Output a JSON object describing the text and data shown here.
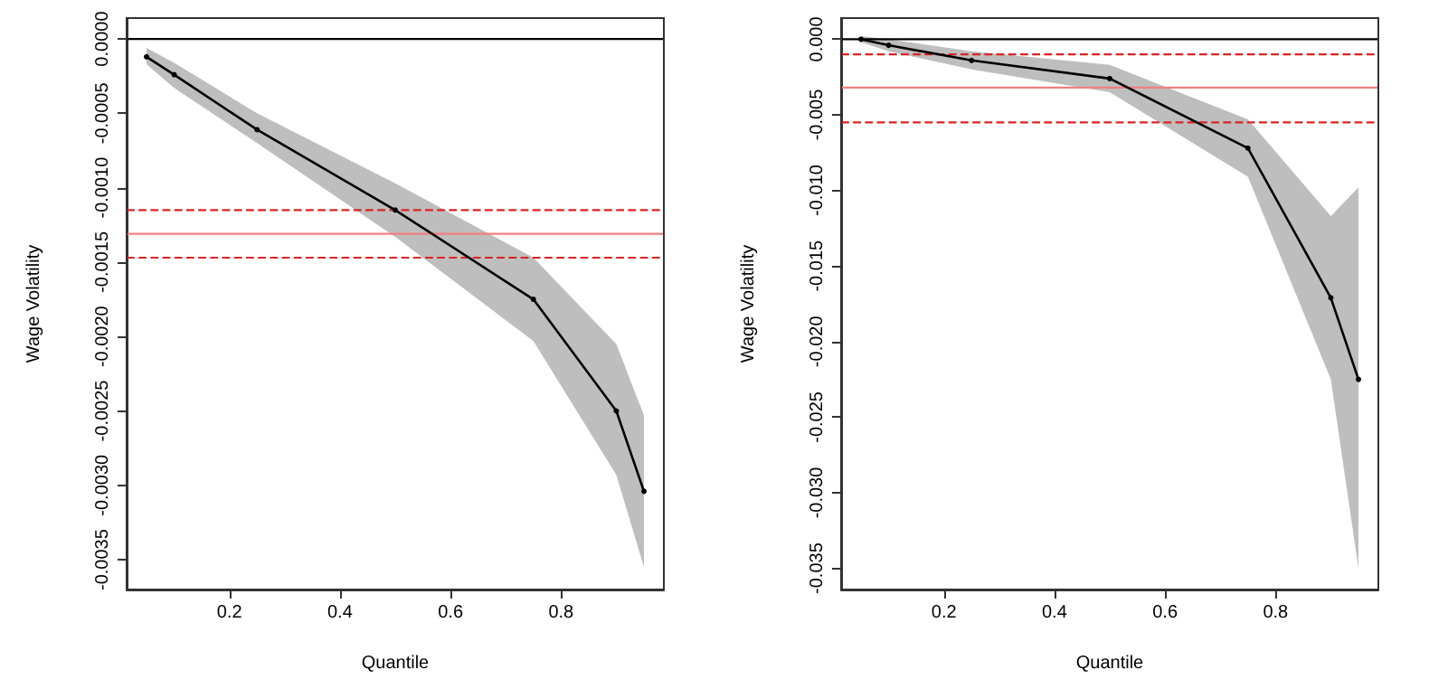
{
  "chart_data": [
    {
      "type": "line",
      "xlabel": "Quantile",
      "ylabel": "Wage Volatility",
      "x": [
        0.05,
        0.1,
        0.25,
        0.5,
        0.75,
        0.9,
        0.95
      ],
      "marker": "circle",
      "line_style": "solid",
      "grid": false,
      "series": [
        {
          "color": "#000000",
          "values": [
            -0.00012,
            -0.00024,
            -0.00061,
            -0.00115,
            -0.00175,
            -0.0025,
            -0.00304
          ],
          "lower": [
            -0.00017,
            -0.00033,
            -0.0007,
            -0.00133,
            -0.00203,
            -0.00293,
            -0.00355
          ],
          "upper": [
            -6e-05,
            -0.00016,
            -0.0005,
            -0.00097,
            -0.00147,
            -0.00205,
            -0.00253
          ]
        }
      ],
      "ref_lines": [
        {
          "axis": "y",
          "value": 0,
          "color": "#000000",
          "line_style": "solid"
        },
        {
          "axis": "y",
          "value": -0.00131,
          "color": "#f08080",
          "line_style": "solid"
        },
        {
          "axis": "y",
          "value": -0.00115,
          "color": "#dd2222",
          "line_style": "dashed"
        },
        {
          "axis": "y",
          "value": -0.00147,
          "color": "#dd2222",
          "line_style": "dashed"
        }
      ],
      "xlim": [
        0.014,
        0.986
      ],
      "xticks": [
        0.2,
        0.4,
        0.6,
        0.8
      ],
      "ylim": [
        -0.0037,
        0.00014
      ],
      "yticks": [
        {
          "value": 0,
          "label": "0.0000"
        },
        {
          "value": -0.0005,
          "label": "-0.0005"
        },
        {
          "value": -0.001,
          "label": "-0.0010"
        },
        {
          "value": -0.0015,
          "label": "-0.0015"
        },
        {
          "value": -0.002,
          "label": "-0.0020"
        },
        {
          "value": -0.0025,
          "label": "-0.0025"
        },
        {
          "value": -0.003,
          "label": "-0.0030"
        },
        {
          "value": -0.0035,
          "label": "-0.0035"
        }
      ]
    },
    {
      "type": "line",
      "xlabel": "Quantile",
      "ylabel": "Wage Volatility",
      "x": [
        0.05,
        0.1,
        0.25,
        0.5,
        0.75,
        0.9,
        0.95
      ],
      "marker": "circle",
      "line_style": "solid",
      "grid": false,
      "series": [
        {
          "color": "#000000",
          "values": [
            0.0,
            -0.0004,
            -0.0014,
            -0.0026,
            -0.0072,
            -0.0171,
            -0.0225
          ],
          "lower": [
            -0.0002,
            -0.0008,
            -0.002,
            -0.0035,
            -0.0091,
            -0.0225,
            -0.035
          ],
          "upper": [
            0.0002,
            0.0,
            -0.0008,
            -0.0017,
            -0.0053,
            -0.0117,
            -0.0098
          ]
        }
      ],
      "ref_lines": [
        {
          "axis": "y",
          "value": 0,
          "color": "#000000",
          "line_style": "solid"
        },
        {
          "axis": "y",
          "value": -0.0032,
          "color": "#f08080",
          "line_style": "solid"
        },
        {
          "axis": "y",
          "value": -0.001,
          "color": "#dd2222",
          "line_style": "dashed"
        },
        {
          "axis": "y",
          "value": -0.0055,
          "color": "#dd2222",
          "line_style": "dashed"
        }
      ],
      "xlim": [
        0.014,
        0.986
      ],
      "xticks": [
        0.2,
        0.4,
        0.6,
        0.8
      ],
      "ylim": [
        -0.0364,
        0.0014
      ],
      "yticks": [
        {
          "value": 0,
          "label": "0.000"
        },
        {
          "value": -0.005,
          "label": "-0.005"
        },
        {
          "value": -0.01,
          "label": "-0.010"
        },
        {
          "value": -0.015,
          "label": "-0.015"
        },
        {
          "value": -0.02,
          "label": "-0.020"
        },
        {
          "value": -0.025,
          "label": "-0.025"
        },
        {
          "value": -0.03,
          "label": "-0.030"
        },
        {
          "value": -0.035,
          "label": "-0.035"
        }
      ]
    }
  ]
}
